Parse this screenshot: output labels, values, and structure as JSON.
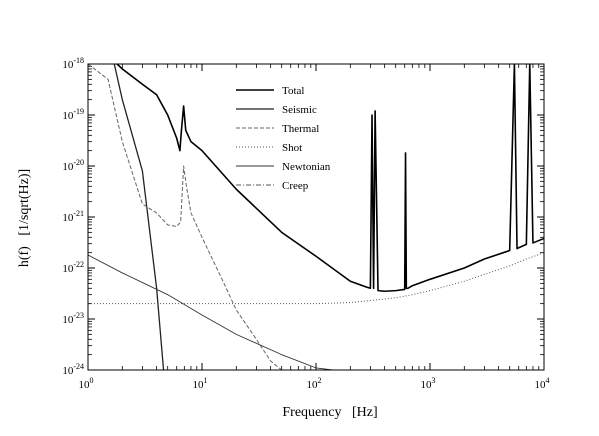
{
  "chart_data": {
    "type": "line",
    "title": "",
    "xlabel": "Frequency   [Hz]",
    "ylabel": "h(f)   [1/sqrt(Hz)]",
    "x_scale": "log",
    "y_scale": "log",
    "xlim": [
      1,
      10000
    ],
    "ylim": [
      1e-24,
      1e-18
    ],
    "grid": false,
    "legend_position": "upper-center",
    "x_ticks": [
      {
        "base": "10",
        "exp": "0"
      },
      {
        "base": "10",
        "exp": "1"
      },
      {
        "base": "10",
        "exp": "2"
      },
      {
        "base": "10",
        "exp": "3"
      },
      {
        "base": "10",
        "exp": "4"
      }
    ],
    "y_ticks": [
      {
        "base": "10",
        "exp": "-18"
      },
      {
        "base": "10",
        "exp": "-19"
      },
      {
        "base": "10",
        "exp": "-20"
      },
      {
        "base": "10",
        "exp": "-21"
      },
      {
        "base": "10",
        "exp": "-22"
      },
      {
        "base": "10",
        "exp": "-23"
      },
      {
        "base": "10",
        "exp": "-24"
      }
    ],
    "series": [
      {
        "name": "Total",
        "style": "solid-thick",
        "x": [
          1.8,
          2,
          3,
          4,
          5,
          6,
          6.4,
          6.6,
          6.9,
          7.2,
          8,
          10,
          20,
          50,
          100,
          200,
          280,
          300,
          310,
          320,
          330,
          350,
          400,
          500,
          600,
          610,
          620,
          640,
          700,
          1000,
          2000,
          3000,
          5000,
          5500,
          5800,
          6000,
          7000,
          7500,
          8000,
          10000
        ],
        "y": [
          1e-18,
          8e-19,
          4e-19,
          2.5e-19,
          1e-19,
          3.5e-20,
          2e-20,
          5e-20,
          1.5e-19,
          5e-20,
          3e-20,
          2e-20,
          3.5e-21,
          5e-22,
          1.7e-22,
          5.5e-23,
          4.2e-23,
          4e-23,
          1e-19,
          4e-23,
          1.2e-19,
          3.6e-23,
          3.5e-23,
          3.6e-23,
          3.8e-23,
          1.8e-20,
          4e-23,
          4e-23,
          4.5e-23,
          6e-23,
          1e-22,
          1.5e-22,
          2.2e-22,
          1e-18,
          2.4e-22,
          2.5e-22,
          2.9e-22,
          1e-18,
          3.1e-22,
          3.8e-22
        ]
      },
      {
        "name": "Seismic",
        "style": "solid",
        "x": [
          1.7,
          2,
          3,
          4,
          4.6
        ],
        "y": [
          1e-18,
          2e-19,
          8e-21,
          4e-23,
          1e-24
        ]
      },
      {
        "name": "Thermal",
        "style": "dashed",
        "x": [
          1,
          1.5,
          2,
          3,
          4,
          5,
          6,
          6.5,
          6.9,
          7.3,
          8,
          10,
          15,
          20,
          30,
          40,
          50,
          100,
          200,
          500,
          1000,
          2000,
          5000,
          10000
        ],
        "y": [
          1e-18,
          5e-19,
          3e-20,
          1.8e-21,
          1.2e-21,
          7e-22,
          6.5e-22,
          8e-22,
          1e-20,
          4e-21,
          1.2e-21,
          4e-22,
          6e-23,
          1.5e-23,
          4e-24,
          1.5e-24,
          1e-24,
          1e-24,
          1e-24,
          1e-24,
          1e-24,
          1e-24,
          1e-24,
          1e-24
        ]
      },
      {
        "name": "Shot",
        "style": "dotted",
        "x": [
          1,
          10,
          100,
          200,
          300,
          500,
          700,
          1000,
          2000,
          3000,
          5000,
          7000,
          10000
        ],
        "y": [
          2e-23,
          2e-23,
          2e-23,
          2.1e-23,
          2.3e-23,
          2.6e-23,
          3e-23,
          3.6e-23,
          5.5e-23,
          7.5e-23,
          1.1e-22,
          1.5e-22,
          2e-22
        ]
      },
      {
        "name": "Newtonian",
        "style": "solid-thin",
        "x": [
          1,
          2,
          5,
          10,
          20,
          50,
          100,
          140
        ],
        "y": [
          1.8e-22,
          8e-23,
          3e-23,
          1.2e-23,
          5e-24,
          2e-24,
          1.1e-24,
          1e-24
        ]
      },
      {
        "name": "Creep",
        "style": "dash-dot",
        "x": [
          1,
          2,
          5,
          10,
          20,
          50,
          100,
          200,
          500,
          1000,
          2000,
          5000,
          10000
        ],
        "y": [
          1e-24,
          1e-24,
          1e-24,
          1e-24,
          1e-24,
          1e-24,
          1e-24,
          1e-24,
          1e-24,
          1e-24,
          1e-24,
          1e-24,
          1e-24
        ]
      }
    ]
  }
}
